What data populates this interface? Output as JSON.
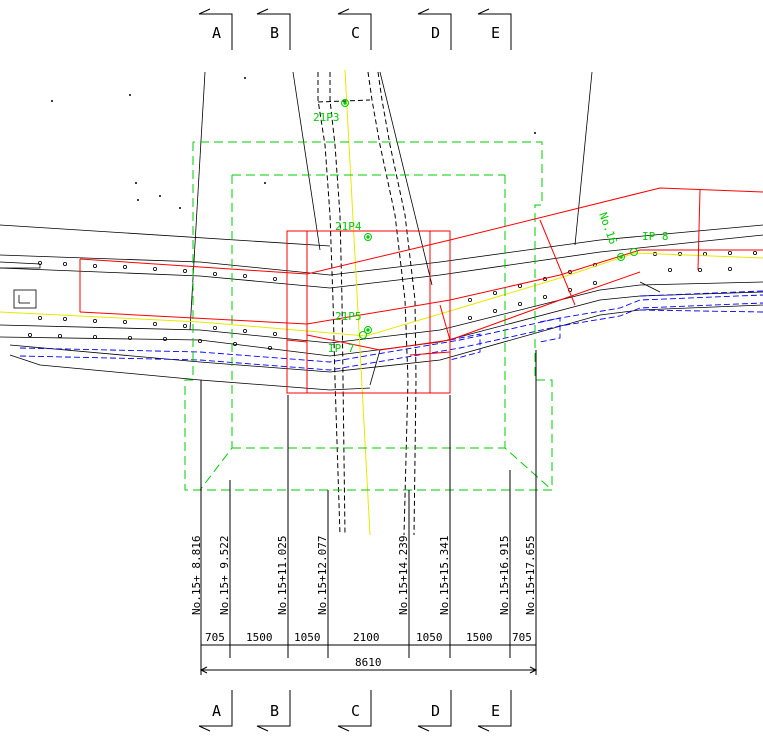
{
  "sections": [
    "A",
    "B",
    "C",
    "D",
    "E"
  ],
  "stations": [
    "No.15+ 8.816",
    "No.15+ 9.522",
    "No.15+11.025",
    "No.15+12.077",
    "No.15+14.239",
    "No.15+15.341",
    "No.15+16.915",
    "No.15+17.655"
  ],
  "dimensions": [
    "705",
    "1500",
    "1050",
    "2100",
    "1050",
    "1500",
    "705"
  ],
  "total_dimension": "8610",
  "ip_labels": [
    "21P3",
    "21P4",
    "21P5",
    "IP 7",
    "IP 8",
    "No.16"
  ],
  "colors": {
    "structure": "#ff0000",
    "excavation": "#00cc00",
    "centerline": "#e8e800",
    "utility": "#0000ff",
    "existing": "#000000"
  }
}
